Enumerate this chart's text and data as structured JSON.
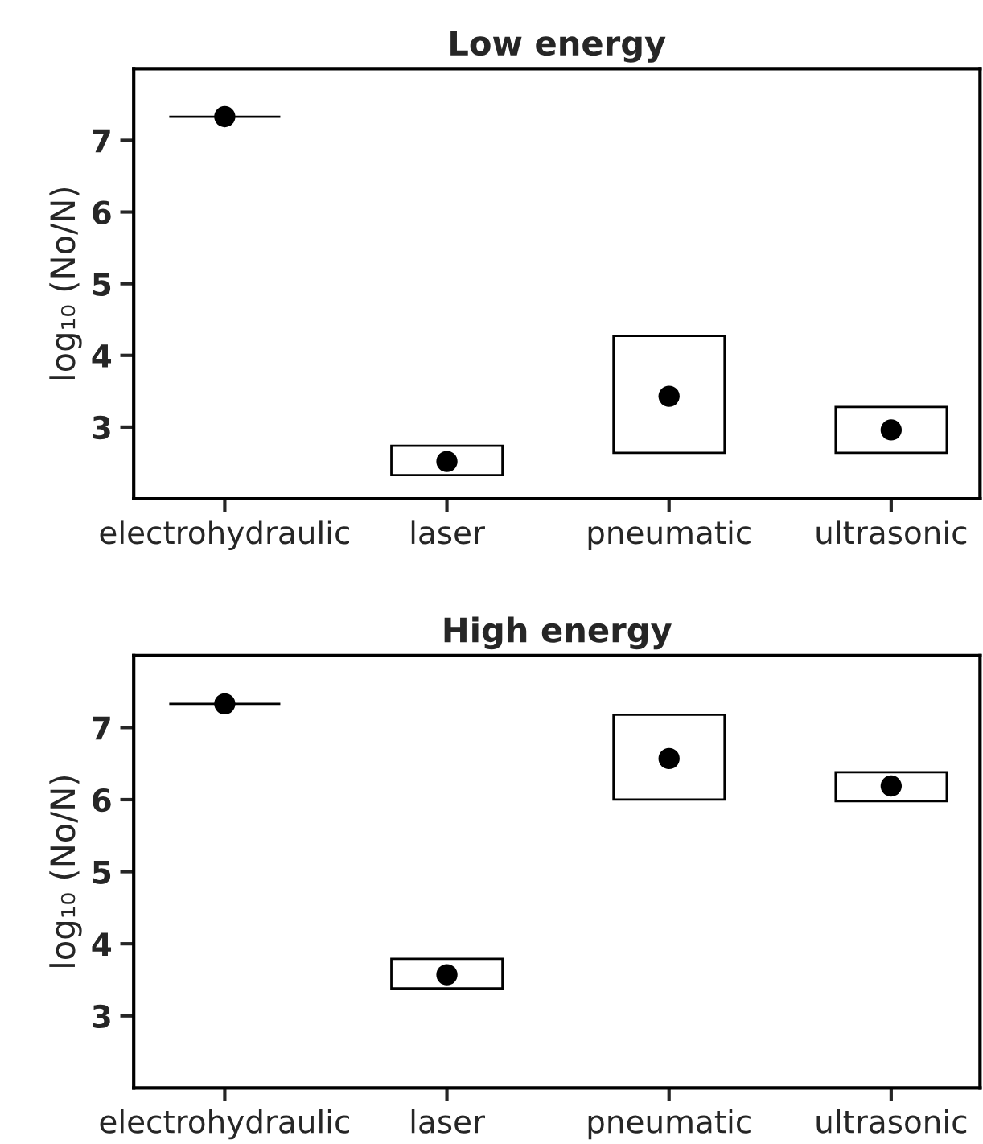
{
  "chart_data": [
    {
      "type": "bar",
      "title": "Low energy",
      "ylabel": "log₁₀ (No/N)",
      "categories": [
        "electrohydraulic",
        "laser",
        "pneumatic",
        "ultrasonic"
      ],
      "ylim": [
        2,
        8
      ],
      "yticks": [
        3,
        4,
        5,
        6,
        7
      ],
      "grid": false,
      "legend": false,
      "series": [
        {
          "color": "#000000",
          "values": [
            0,
            0.41,
            1.63,
            0.64
          ],
          "base": [
            7.33,
            2.33,
            2.64,
            2.64
          ]
        },
        {
          "type": "scatter",
          "color": "#000000",
          "marker": "circle",
          "values": [
            7.33,
            2.52,
            3.43,
            2.96
          ]
        }
      ]
    },
    {
      "type": "bar",
      "title": "High energy",
      "ylabel": "log₁₀ (No/N)",
      "categories": [
        "electrohydraulic",
        "laser",
        "pneumatic",
        "ultrasonic"
      ],
      "ylim": [
        2,
        8
      ],
      "yticks": [
        3,
        4,
        5,
        6,
        7
      ],
      "grid": false,
      "legend": false,
      "series": [
        {
          "color": "#000000",
          "values": [
            0,
            0.41,
            1.18,
            0.4
          ],
          "base": [
            7.33,
            3.38,
            6.0,
            5.98
          ]
        },
        {
          "type": "scatter",
          "color": "#000000",
          "marker": "circle",
          "values": [
            7.33,
            3.57,
            6.57,
            6.19
          ]
        }
      ]
    }
  ]
}
